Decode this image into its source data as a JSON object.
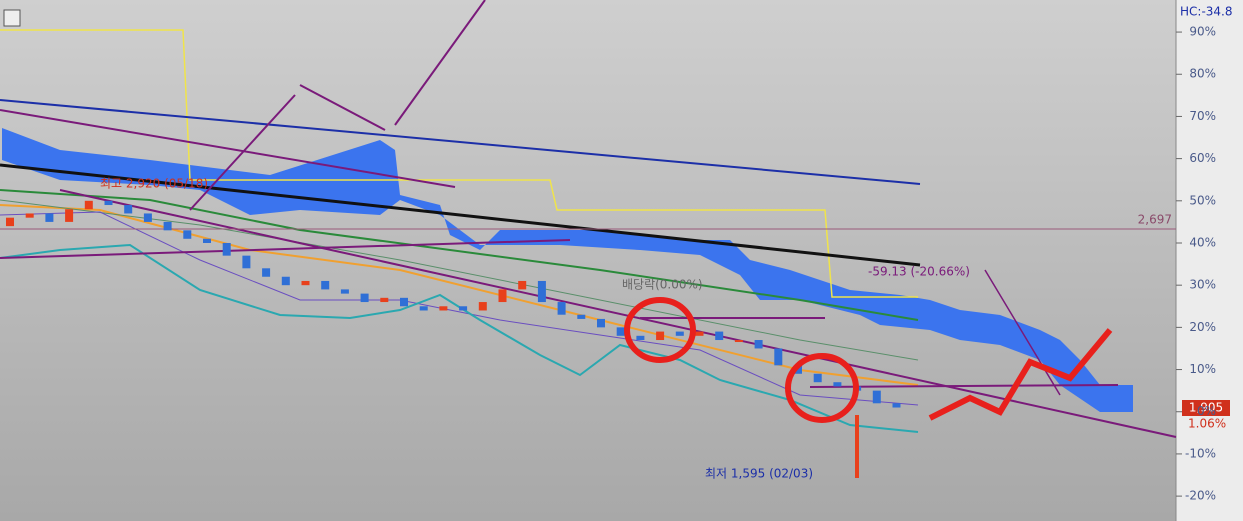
{
  "chart_data": {
    "type": "candlestick",
    "corner_label": "HC:-34.8",
    "high_label": "최고 2,920 (05/18)",
    "low_label": "최저 1,595 (02/03)",
    "ex_dividend_label": "배당락(0.00%)",
    "change_label": "-59.13 (-20.66%)",
    "price_line_label": "2,697",
    "current_price_label": "1,905",
    "current_change_label": "1.06%",
    "ylim": [
      -25.9,
      97.6
    ],
    "yticks": [
      {
        "value": 90,
        "label": "90%"
      },
      {
        "value": 80,
        "label": "80%"
      },
      {
        "value": 70,
        "label": "70%"
      },
      {
        "value": 60,
        "label": "60%"
      },
      {
        "value": 50,
        "label": "50%"
      },
      {
        "value": 40,
        "label": "40%"
      },
      {
        "value": 30,
        "label": "30%"
      },
      {
        "value": 20,
        "label": "20%"
      },
      {
        "value": 10,
        "label": "10%"
      },
      {
        "value": 0,
        "label": "0%"
      },
      {
        "value": -10,
        "label": "-10%"
      },
      {
        "value": -20,
        "label": "-20%"
      }
    ],
    "up_color": "#e8401c",
    "down_color": "#2f6fd6",
    "open": [
      44,
      46,
      47,
      45,
      48,
      50,
      49,
      47,
      45,
      43,
      41,
      40,
      37,
      34,
      32,
      30,
      31,
      29,
      28,
      26,
      27,
      25,
      24,
      25,
      24,
      26,
      29,
      31,
      26,
      23,
      22,
      20,
      18,
      17,
      19,
      18,
      19,
      17,
      17,
      15,
      11,
      9,
      7,
      6,
      5,
      2
    ],
    "close": [
      46,
      47,
      45,
      48,
      50,
      49,
      47,
      45,
      43,
      41,
      40,
      37,
      34,
      32,
      30,
      31,
      29,
      28,
      26,
      27,
      25,
      24,
      25,
      24,
      26,
      29,
      31,
      26,
      23,
      22,
      20,
      18,
      17,
      19,
      18,
      19,
      17,
      17,
      15,
      11,
      9,
      7,
      6,
      5,
      2,
      1
    ]
  }
}
